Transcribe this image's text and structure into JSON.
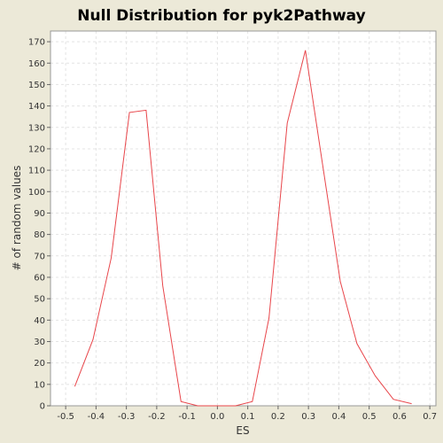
{
  "chart_data": {
    "type": "line",
    "title": "Null Distribution for pyk2Pathway",
    "xlabel": "ES",
    "ylabel": "# of random values",
    "xlim": [
      -0.55,
      0.72
    ],
    "ylim": [
      0,
      175
    ],
    "x_ticks": [
      -0.5,
      -0.4,
      -0.3,
      -0.2,
      -0.1,
      0.0,
      0.1,
      0.2,
      0.3,
      0.4,
      0.5,
      0.6,
      0.7
    ],
    "x_tick_labels": [
      "-0.5",
      "-0.4",
      "-0.3",
      "-0.2",
      "-0.1",
      "0.0",
      "0.1",
      "0.2",
      "0.3",
      "0.4",
      "0.5",
      "0.6",
      "0.7"
    ],
    "y_ticks": [
      0,
      10,
      20,
      30,
      40,
      50,
      60,
      70,
      80,
      90,
      100,
      110,
      120,
      130,
      140,
      150,
      160,
      170
    ],
    "y_tick_labels": [
      "0",
      "10",
      "20",
      "30",
      "40",
      "50",
      "60",
      "70",
      "80",
      "90",
      "100",
      "110",
      "120",
      "130",
      "140",
      "150",
      "160",
      "170"
    ],
    "grid": true,
    "line_color": "#e8454a",
    "series": [
      {
        "x": [
          -0.47,
          -0.41,
          -0.35,
          -0.29,
          -0.235,
          -0.18,
          -0.12,
          -0.065,
          -0.01,
          0.06,
          0.115,
          0.17,
          0.23,
          0.29,
          0.345,
          0.405,
          0.46,
          0.52,
          0.58,
          0.64
        ],
        "values": [
          9,
          31,
          69,
          137,
          138,
          56,
          2,
          0,
          0,
          0,
          2,
          41,
          132,
          166,
          114,
          58,
          29,
          14,
          3,
          1
        ]
      }
    ]
  }
}
